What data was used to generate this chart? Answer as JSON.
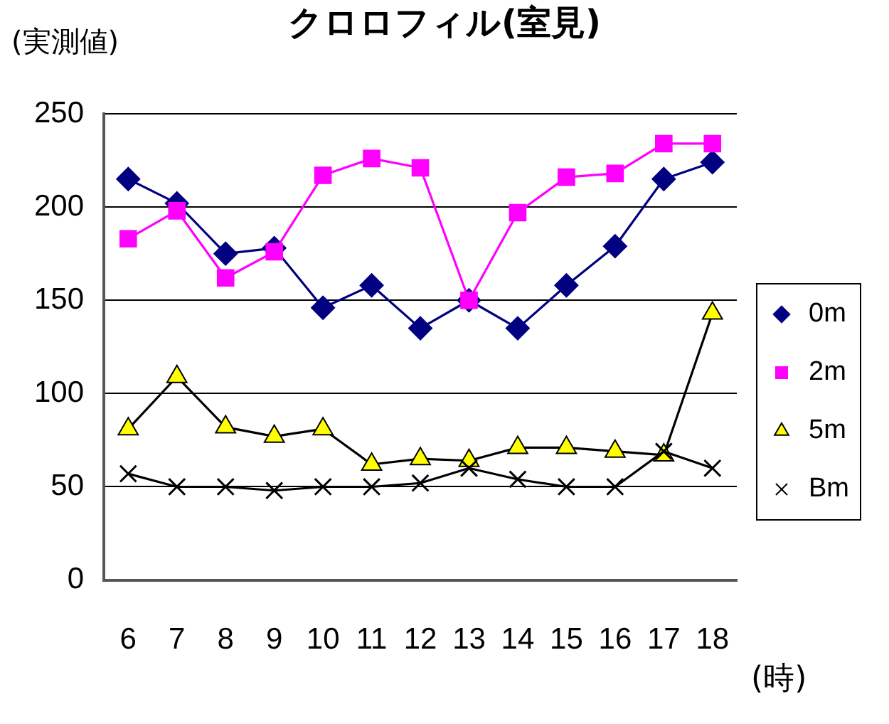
{
  "chart_data": {
    "type": "line",
    "title": "クロロフィル(室見)",
    "ylabel": "(実測値)",
    "xlabel": "(時)",
    "categories": [
      "6",
      "7",
      "8",
      "9",
      "10",
      "11",
      "12",
      "13",
      "14",
      "15",
      "16",
      "17",
      "18"
    ],
    "series": [
      {
        "name": "0m",
        "color": "#000080",
        "marker": "diamond",
        "values": [
          215,
          202,
          175,
          178,
          146,
          158,
          135,
          150,
          135,
          158,
          179,
          215,
          224
        ]
      },
      {
        "name": "2m",
        "color": "#ff00ff",
        "marker": "square",
        "values": [
          183,
          198,
          162,
          176,
          217,
          226,
          221,
          150,
          197,
          216,
          218,
          234,
          234
        ]
      },
      {
        "name": "5m",
        "color": "#000000",
        "colors": [
          "#ffff00",
          "#ffff00",
          "#ffff00",
          "#ffff00",
          "#ffff00",
          "#ffff00",
          "#ffff00",
          "#ffff00",
          "#ffff00",
          "#ffff00",
          "#ffff00",
          "#ffff00",
          "#ffff00"
        ],
        "marker": "triangle",
        "values": [
          81,
          109,
          82,
          77,
          81,
          62,
          65,
          64,
          71,
          71,
          69,
          67,
          143
        ]
      },
      {
        "name": "Bm",
        "color": "#000000",
        "marker": "cross",
        "values": [
          57,
          50,
          50,
          48,
          50,
          50,
          52,
          60,
          54,
          50,
          50,
          69,
          60
        ]
      }
    ],
    "ylim": [
      0,
      250
    ],
    "yticks": [
      0,
      50,
      100,
      150,
      200,
      250
    ],
    "grid": "y",
    "legend": "right"
  }
}
